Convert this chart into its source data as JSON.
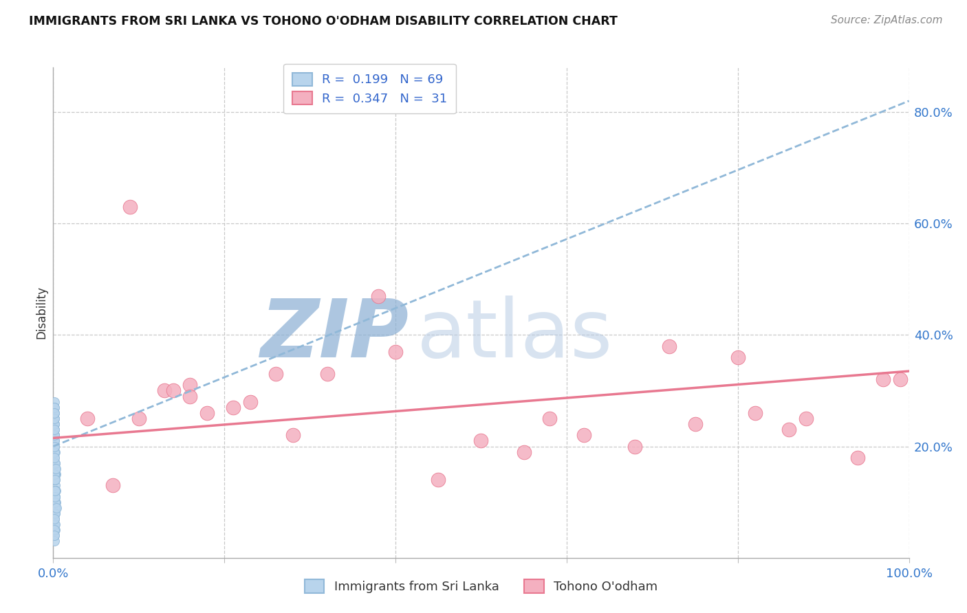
{
  "title": "IMMIGRANTS FROM SRI LANKA VS TOHONO O'ODHAM DISABILITY CORRELATION CHART",
  "source_text": "Source: ZipAtlas.com",
  "ylabel": "Disability",
  "xlim": [
    0.0,
    1.0
  ],
  "ylim": [
    0.0,
    0.88
  ],
  "ytick_vals_right": [
    0.2,
    0.4,
    0.6,
    0.8
  ],
  "ytick_labels_right": [
    "20.0%",
    "40.0%",
    "60.0%",
    "80.0%"
  ],
  "grid_color": "#c8c8c8",
  "background_color": "#ffffff",
  "watermark_zip_color": "#8aafd4",
  "watermark_atlas_color": "#b8cce4",
  "series1_label": "Immigrants from Sri Lanka",
  "series1_line_color": "#90b8d8",
  "series1_fill_color": "#b8d4ec",
  "series2_label": "Tohono O'odham",
  "series2_line_color": "#e87890",
  "series2_fill_color": "#f4b0c0",
  "R1": "0.199",
  "N1": "69",
  "R2": "0.347",
  "N2": "31",
  "legend_text_color": "#3366cc",
  "trend1_x0": 0.0,
  "trend1_y0": 0.2,
  "trend1_x1": 1.0,
  "trend1_y1": 0.82,
  "trend2_x0": 0.0,
  "trend2_y0": 0.215,
  "trend2_x1": 1.0,
  "trend2_y1": 0.335,
  "series1_x": [
    0.001,
    0.002,
    0.001,
    0.003,
    0.001,
    0.002,
    0.001,
    0.001,
    0.002,
    0.001,
    0.001,
    0.002,
    0.001,
    0.003,
    0.001,
    0.002,
    0.001,
    0.001,
    0.002,
    0.001,
    0.001,
    0.002,
    0.001,
    0.001,
    0.002,
    0.001,
    0.001,
    0.002,
    0.001,
    0.001,
    0.002,
    0.001,
    0.003,
    0.001,
    0.002,
    0.001,
    0.001,
    0.002,
    0.001,
    0.001,
    0.002,
    0.001,
    0.001,
    0.002,
    0.001,
    0.003,
    0.001,
    0.002,
    0.001,
    0.001,
    0.002,
    0.001,
    0.001,
    0.002,
    0.001,
    0.001,
    0.002,
    0.001,
    0.004,
    0.001,
    0.002,
    0.001,
    0.001,
    0.002,
    0.001,
    0.001,
    0.003,
    0.001,
    0.002
  ],
  "series1_y": [
    0.22,
    0.08,
    0.19,
    0.15,
    0.24,
    0.1,
    0.06,
    0.28,
    0.13,
    0.2,
    0.05,
    0.17,
    0.25,
    0.09,
    0.22,
    0.14,
    0.18,
    0.04,
    0.11,
    0.26,
    0.07,
    0.16,
    0.23,
    0.03,
    0.12,
    0.21,
    0.08,
    0.19,
    0.27,
    0.06,
    0.15,
    0.24,
    0.1,
    0.2,
    0.05,
    0.17,
    0.25,
    0.09,
    0.22,
    0.14,
    0.11,
    0.26,
    0.07,
    0.16,
    0.23,
    0.12,
    0.21,
    0.08,
    0.19,
    0.27,
    0.06,
    0.15,
    0.24,
    0.1,
    0.2,
    0.05,
    0.17,
    0.25,
    0.09,
    0.22,
    0.14,
    0.18,
    0.04,
    0.11,
    0.26,
    0.07,
    0.16,
    0.23,
    0.12
  ],
  "series2_x": [
    0.04,
    0.09,
    0.13,
    0.16,
    0.07,
    0.21,
    0.26,
    0.16,
    0.23,
    0.1,
    0.28,
    0.14,
    0.18,
    0.38,
    0.5,
    0.55,
    0.62,
    0.68,
    0.4,
    0.75,
    0.82,
    0.88,
    0.94,
    0.99,
    0.72,
    0.58,
    0.45,
    0.32,
    0.8,
    0.86,
    0.97
  ],
  "series2_y": [
    0.25,
    0.63,
    0.3,
    0.31,
    0.13,
    0.27,
    0.33,
    0.29,
    0.28,
    0.25,
    0.22,
    0.3,
    0.26,
    0.47,
    0.21,
    0.19,
    0.22,
    0.2,
    0.37,
    0.24,
    0.26,
    0.25,
    0.18,
    0.32,
    0.38,
    0.25,
    0.14,
    0.33,
    0.36,
    0.23,
    0.32
  ]
}
